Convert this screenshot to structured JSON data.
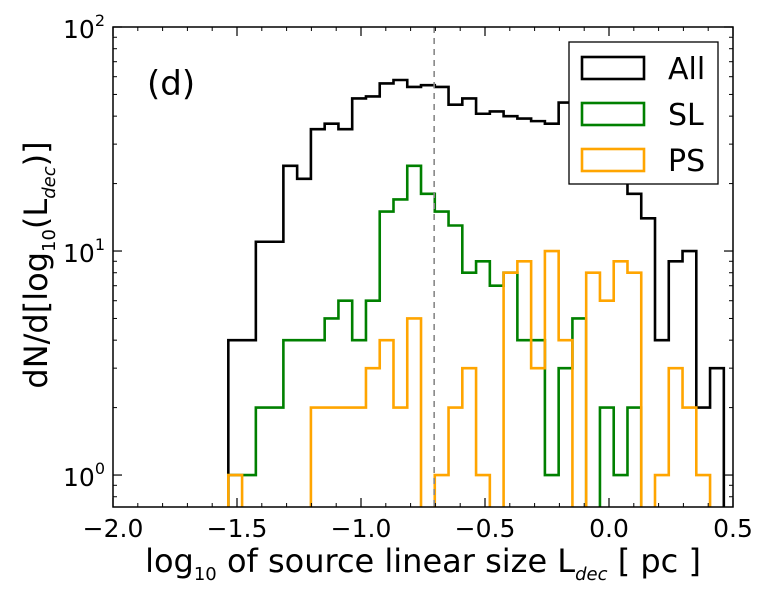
{
  "chart_data": {
    "type": "histogram-step",
    "panel_label": "(d)",
    "xlabel": {
      "main": "log",
      "sub": "10",
      "rest": " of source linear size L",
      "sub2": "dec",
      "tail": " [ pc ]"
    },
    "ylabel": {
      "main": "dN/d[log",
      "sub": "10",
      "mid": "(L",
      "sub2": "dec",
      "tail": ")]"
    },
    "xlim": [
      -2.0,
      0.5
    ],
    "ylim": [
      0.72,
      100
    ],
    "yscale": "log",
    "x_ticks": [
      -2.0,
      -1.5,
      -1.0,
      -0.5,
      0.0,
      0.5
    ],
    "x_tick_labels": [
      "−2.0",
      "−1.5",
      "−1.0",
      "−0.5",
      "0.0",
      "0.5"
    ],
    "y_ticks": [
      1,
      10,
      100
    ],
    "y_tick_labels": [
      {
        "base": "10",
        "exp": "0"
      },
      {
        "base": "10",
        "exp": "1"
      },
      {
        "base": "10",
        "exp": "2"
      }
    ],
    "vline_x": -0.705,
    "bin_width": 0.0555,
    "bin_start": -1.535,
    "legend": {
      "placement": "top-right"
    },
    "series": [
      {
        "name": "All",
        "color": "#000000",
        "values": [
          4,
          4,
          11,
          11,
          24,
          21,
          35,
          37,
          35,
          48,
          49,
          56,
          58,
          54,
          55,
          54,
          45,
          48,
          41,
          42,
          40,
          39,
          38,
          37,
          46,
          38,
          29,
          26,
          21,
          18,
          14,
          4,
          9,
          10,
          2,
          3,
          0
        ]
      },
      {
        "name": "SL",
        "color": "#008000",
        "values": [
          1,
          1,
          2,
          2,
          4,
          4,
          4,
          5,
          6,
          4,
          6,
          15,
          17,
          24,
          18,
          15,
          13,
          8,
          9,
          7,
          8,
          4,
          4,
          1,
          3,
          5,
          0,
          2,
          1,
          2,
          0,
          0,
          0,
          0,
          0,
          0,
          0
        ]
      },
      {
        "name": "PS",
        "color": "#ffa500",
        "values": [
          1,
          0,
          0,
          0,
          0,
          0,
          2,
          2,
          2,
          2,
          3,
          4,
          2,
          5,
          0,
          1,
          2,
          3,
          1,
          0,
          8,
          9,
          3,
          10,
          4,
          0,
          8,
          6,
          9,
          8,
          0,
          1,
          3,
          2,
          1,
          0,
          0
        ]
      }
    ]
  }
}
